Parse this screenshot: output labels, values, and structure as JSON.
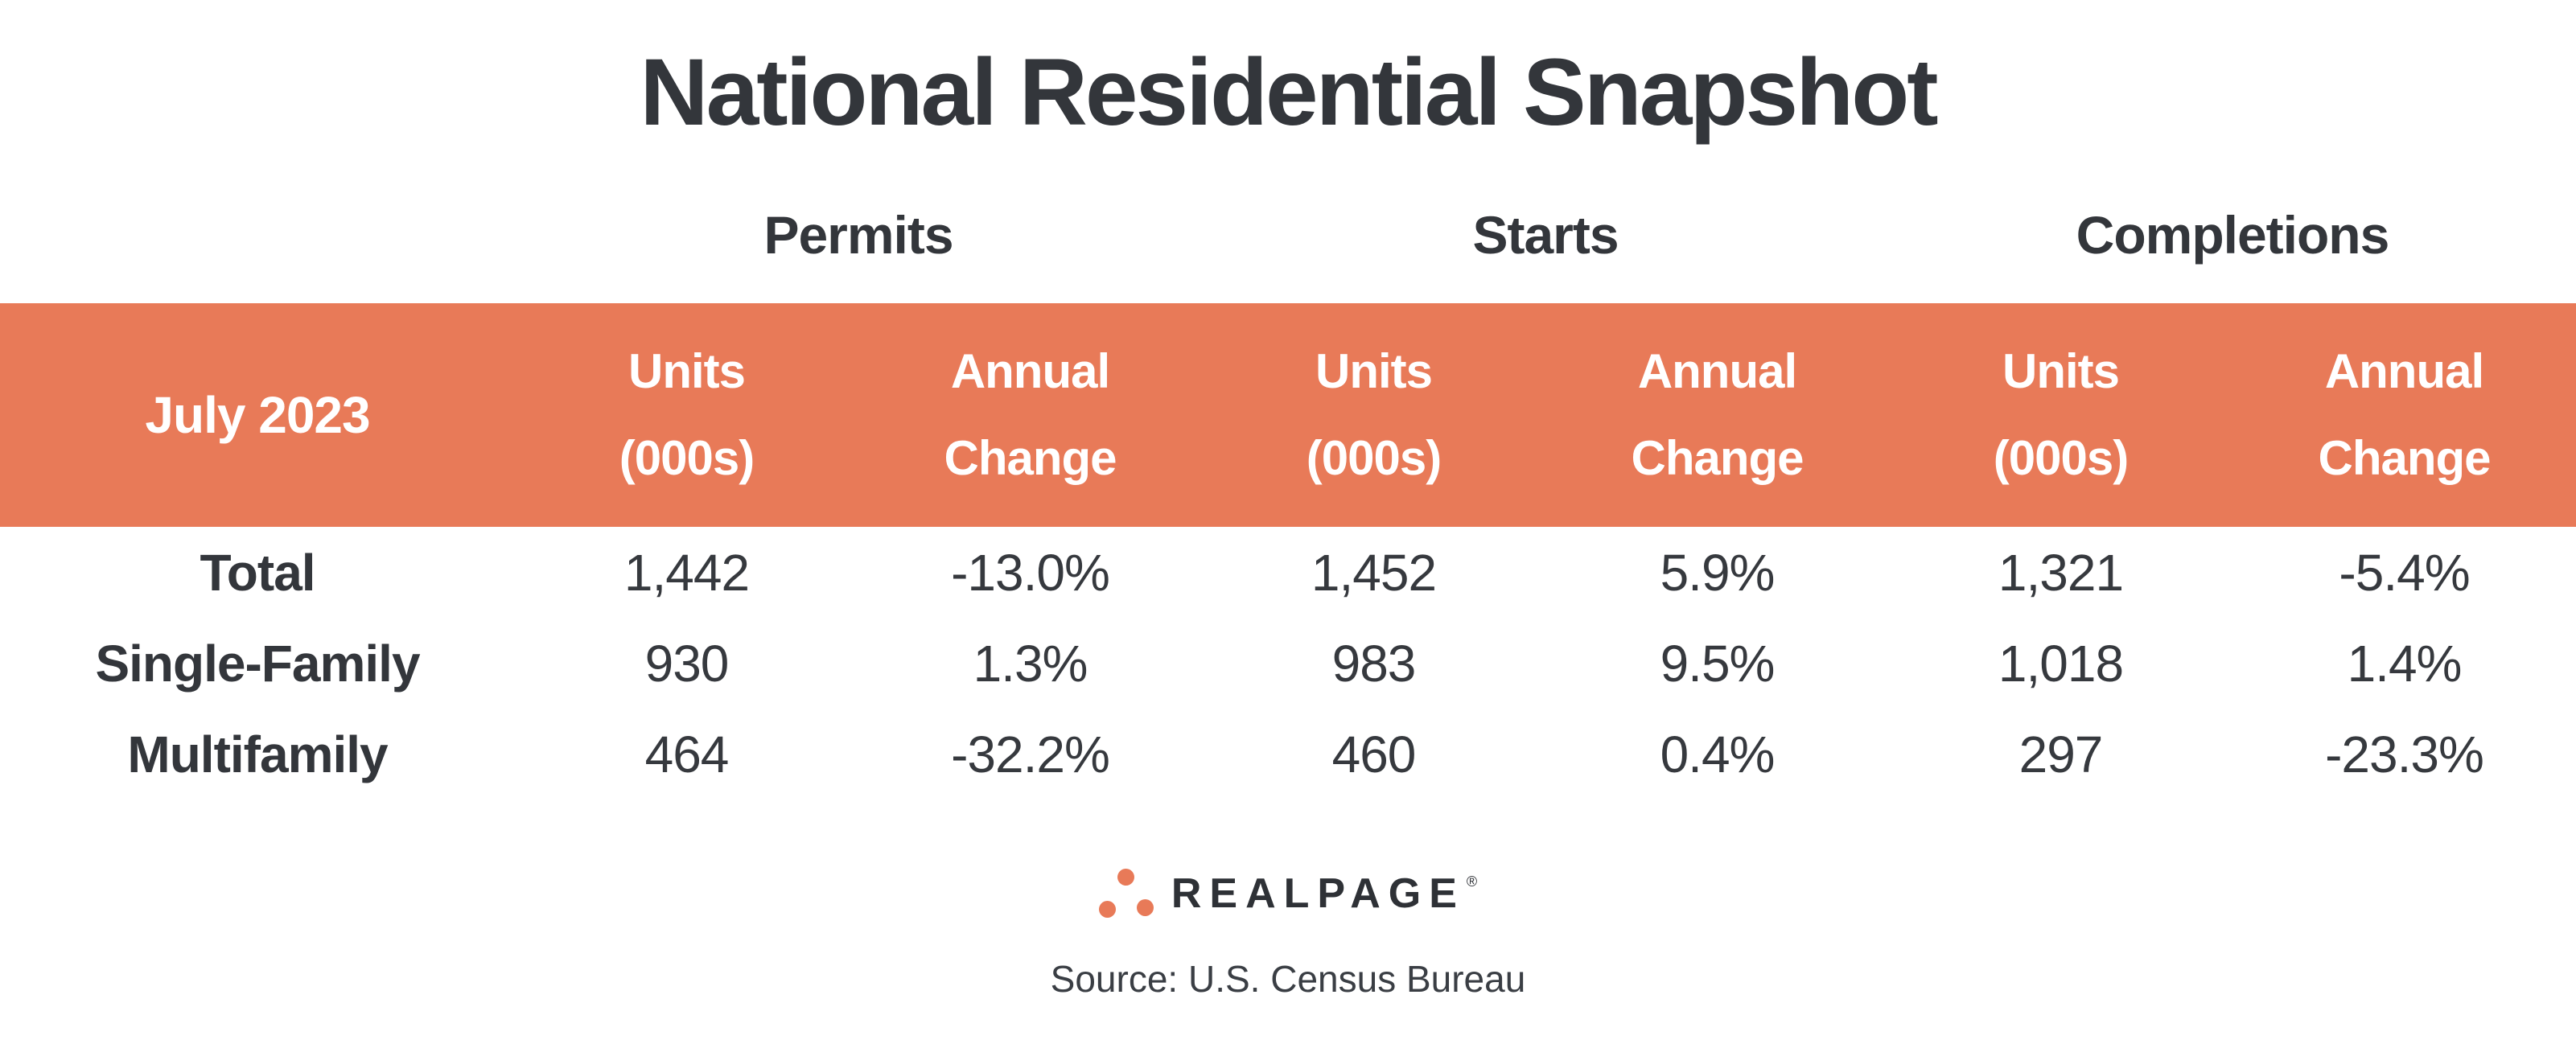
{
  "title": "National Residential Snapshot",
  "period_label": "July 2023",
  "groups": [
    {
      "label": "Permits"
    },
    {
      "label": "Starts"
    },
    {
      "label": "Completions"
    }
  ],
  "column_headers": {
    "units_line1": "Units",
    "units_line2": "(000s)",
    "annual_line1": "Annual",
    "annual_line2": "Change"
  },
  "rows": [
    {
      "label": "Total",
      "values": [
        "1,442",
        "-13.0%",
        "1,452",
        "5.9%",
        "1,321",
        "-5.4%"
      ]
    },
    {
      "label": "Single-Family",
      "values": [
        "930",
        "1.3%",
        "983",
        "9.5%",
        "1,018",
        "1.4%"
      ]
    },
    {
      "label": "Multifamily",
      "values": [
        "464",
        "-32.2%",
        "460",
        "0.4%",
        "297",
        "-23.3%"
      ]
    }
  ],
  "logo": {
    "text": "REALPAGE",
    "registered": "®"
  },
  "source": "Source: U.S. Census Bureau",
  "colors": {
    "accent": "#E87A58",
    "text_dark": "#33363B",
    "header_text": "#FFFFFF"
  },
  "chart_data": {
    "type": "table",
    "title": "National Residential Snapshot",
    "period": "July 2023",
    "column_groups": [
      "Permits",
      "Starts",
      "Completions"
    ],
    "columns": [
      "Permits Units (000s)",
      "Permits Annual Change",
      "Starts Units (000s)",
      "Starts Annual Change",
      "Completions Units (000s)",
      "Completions Annual Change"
    ],
    "rows": [
      {
        "category": "Total",
        "permits_units_000s": 1442,
        "permits_annual_change_pct": -13.0,
        "starts_units_000s": 1452,
        "starts_annual_change_pct": 5.9,
        "completions_units_000s": 1321,
        "completions_annual_change_pct": -5.4
      },
      {
        "category": "Single-Family",
        "permits_units_000s": 930,
        "permits_annual_change_pct": 1.3,
        "starts_units_000s": 983,
        "starts_annual_change_pct": 9.5,
        "completions_units_000s": 1018,
        "completions_annual_change_pct": 1.4
      },
      {
        "category": "Multifamily",
        "permits_units_000s": 464,
        "permits_annual_change_pct": -32.2,
        "starts_units_000s": 460,
        "starts_annual_change_pct": 0.4,
        "completions_units_000s": 297,
        "completions_annual_change_pct": -23.3
      }
    ],
    "source": "Source: U.S. Census Bureau"
  }
}
